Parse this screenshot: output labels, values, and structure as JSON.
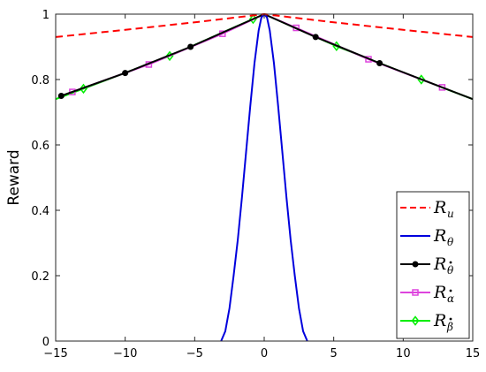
{
  "chart_data": {
    "type": "line",
    "title": "",
    "xlabel": "",
    "ylabel": "Reward",
    "xlim": [
      -15,
      15
    ],
    "ylim": [
      0,
      1
    ],
    "xticks": [
      -15,
      -10,
      -5,
      0,
      5,
      10,
      15
    ],
    "yticks": [
      0,
      0.2,
      0.4,
      0.6,
      0.8,
      1
    ],
    "xtick_labels": [
      "−15",
      "−10",
      "−5",
      "0",
      "5",
      "10",
      "15"
    ],
    "ytick_labels": [
      "0",
      "0.2",
      "0.4",
      "0.6",
      "0.8",
      "1"
    ],
    "grid": false,
    "legend_position": "bottom-right",
    "series": [
      {
        "name": "R_u",
        "base": "R",
        "sub": "u",
        "sub_dot": false,
        "color": "#ff0000",
        "style": "dashed",
        "marker": "none",
        "x": [
          -15,
          -10,
          -5,
          0,
          5,
          10,
          15
        ],
        "y": [
          0.93,
          0.952,
          0.975,
          1.0,
          0.975,
          0.952,
          0.93
        ]
      },
      {
        "name": "R_θ",
        "base": "R",
        "sub": "θ",
        "sub_dot": false,
        "color": "#0000dd",
        "style": "solid",
        "marker": "none",
        "x": [
          -3.1,
          -2.8,
          -2.5,
          -2.2,
          -1.9,
          -1.6,
          -1.3,
          -1.0,
          -0.7,
          -0.4,
          -0.2,
          0,
          0.2,
          0.4,
          0.7,
          1.0,
          1.3,
          1.6,
          1.9,
          2.2,
          2.5,
          2.8,
          3.1
        ],
        "y": [
          0.0,
          0.03,
          0.1,
          0.2,
          0.31,
          0.44,
          0.58,
          0.72,
          0.85,
          0.95,
          0.99,
          1.0,
          0.99,
          0.95,
          0.85,
          0.72,
          0.58,
          0.44,
          0.31,
          0.2,
          0.1,
          0.03,
          0.0
        ]
      },
      {
        "name": "R_θ̇",
        "base": "R",
        "sub": "θ",
        "sub_dot": true,
        "color": "#000000",
        "style": "solid",
        "marker": "circle",
        "x": [
          -14.6,
          -10,
          -5.3,
          0,
          3.7,
          8.3,
          15
        ],
        "y": [
          0.75,
          0.82,
          0.9,
          1.0,
          0.93,
          0.85,
          0.74
        ],
        "marker_x": [
          -14.6,
          -10,
          -5.3,
          3.7,
          8.3
        ]
      },
      {
        "name": "R_α̇",
        "base": "R",
        "sub": "α",
        "sub_dot": true,
        "color": "#dd44dd",
        "style": "solid",
        "marker": "square",
        "x": [
          -13.8,
          -8.3,
          -3,
          0,
          2.3,
          7.5,
          12.8
        ],
        "y": [
          0.762,
          0.846,
          0.94,
          1.0,
          0.958,
          0.862,
          0.776
        ],
        "marker_x": [
          -13.8,
          -8.3,
          -3,
          2.3,
          7.5,
          12.8
        ]
      },
      {
        "name": "R_β̇",
        "base": "R",
        "sub": "β",
        "sub_dot": true,
        "color": "#00ee00",
        "style": "solid",
        "marker": "diamond",
        "x": [
          -15,
          -13,
          -6.8,
          -0.8,
          0,
          5.2,
          11.3,
          15
        ],
        "y": [
          0.74,
          0.772,
          0.872,
          0.985,
          1.0,
          0.902,
          0.8,
          0.74
        ],
        "marker_x": [
          -13,
          -6.8,
          -0.8,
          5.2,
          11.3
        ]
      }
    ]
  }
}
